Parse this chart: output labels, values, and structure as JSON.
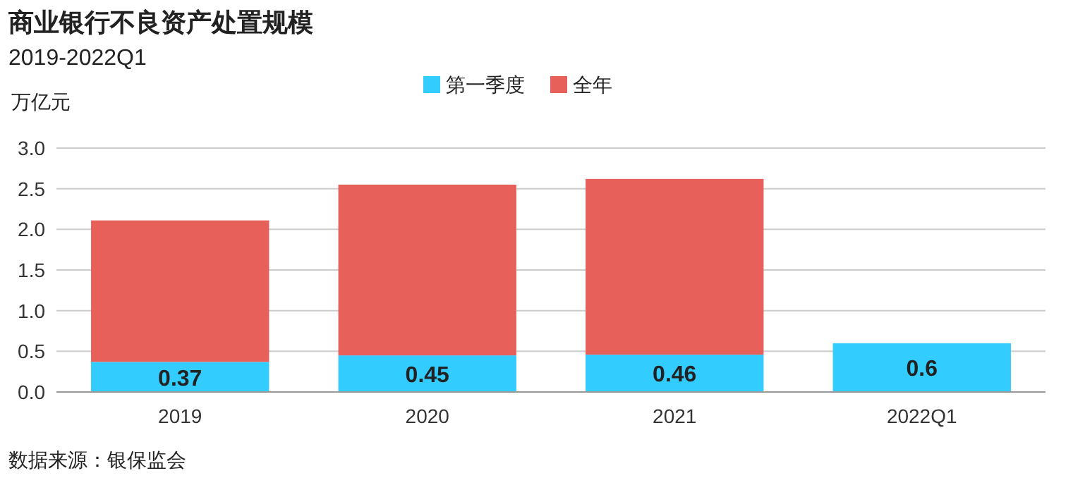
{
  "chart_data": {
    "type": "bar",
    "title": "商业银行不良资产处置规模",
    "subtitle": "2019-2022Q1",
    "ylabel": "万亿元",
    "annotations": [
      "数据来源：银保监会"
    ],
    "categories": [
      "2019",
      "2020",
      "2021",
      "2022Q1"
    ],
    "stacked": true,
    "series": [
      {
        "name": "第一季度",
        "color": "#33ccff",
        "values": [
          0.37,
          0.45,
          0.46,
          0.6
        ],
        "value_labels": [
          "0.37",
          "0.45",
          "0.46",
          "0.6"
        ]
      },
      {
        "name": "全年",
        "color": "#e8605a",
        "values": [
          1.74,
          2.1,
          2.16,
          null
        ]
      }
    ],
    "ylim": [
      0,
      3
    ],
    "yticks": [
      {
        "value": 0,
        "label": "0.0"
      },
      0.5,
      {
        "value": 1,
        "label": "1.0"
      },
      1.5,
      {
        "value": 2,
        "label": "2.0"
      },
      2.5,
      {
        "value": 3,
        "label": "3.0"
      }
    ],
    "grid": "y",
    "legend": "top"
  }
}
